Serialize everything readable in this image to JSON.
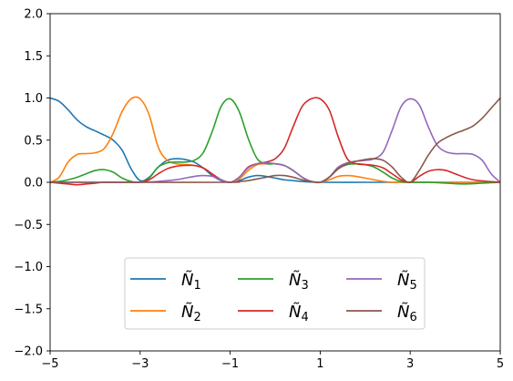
{
  "chart_data": {
    "type": "line",
    "title": "",
    "xlabel": "",
    "ylabel": "",
    "xlim": [
      -5,
      5
    ],
    "ylim": [
      -2.0,
      2.0
    ],
    "xticks": [
      -5,
      -3,
      -1,
      1,
      3,
      5
    ],
    "xtick_labels": [
      "−5",
      "−3",
      "−1",
      "1",
      "3",
      "5"
    ],
    "yticks": [
      -2.0,
      -1.5,
      -1.0,
      -0.5,
      0.0,
      0.5,
      1.0,
      1.5,
      2.0
    ],
    "ytick_labels": [
      "−2.0",
      "−1.5",
      "−1.0",
      "−0.5",
      "0.0",
      "0.5",
      "1.0",
      "1.5",
      "2.0"
    ],
    "grid": false,
    "legend": {
      "placement": "lower center",
      "columns": 3
    },
    "series": [
      {
        "name": "N1",
        "legend_base": "Ñ",
        "legend_sub": "1",
        "color": "#1f77b4",
        "x": [
          -5,
          -4.8,
          -4.6,
          -4.4,
          -4.2,
          -4.0,
          -3.8,
          -3.6,
          -3.4,
          -3.2,
          -3.0,
          -2.8,
          -2.6,
          -2.4,
          -2.2,
          -2.0,
          -1.8,
          -1.6,
          -1.4,
          -1.2,
          -1.0,
          -0.8,
          -0.6,
          -0.4,
          -0.2,
          0.0,
          0.2,
          0.4,
          0.6,
          1.0,
          2.0,
          3.0,
          4.0,
          5.0
        ],
        "y": [
          1.0,
          0.96,
          0.86,
          0.74,
          0.66,
          0.61,
          0.56,
          0.5,
          0.38,
          0.16,
          0.02,
          0.06,
          0.18,
          0.26,
          0.28,
          0.27,
          0.24,
          0.17,
          0.08,
          0.02,
          0.0,
          0.02,
          0.06,
          0.08,
          0.07,
          0.05,
          0.03,
          0.02,
          0.01,
          0.0,
          0.0,
          0.0,
          0.0,
          0.0
        ]
      },
      {
        "name": "N2",
        "legend_base": "Ñ",
        "legend_sub": "2",
        "color": "#ff7f0e",
        "x": [
          -5,
          -4.8,
          -4.6,
          -4.4,
          -4.2,
          -4.0,
          -3.8,
          -3.6,
          -3.4,
          -3.2,
          -3.0,
          -2.8,
          -2.6,
          -2.4,
          -2.2,
          -2.0,
          -1.8,
          -1.6,
          -1.4,
          -1.2,
          -1.0,
          -0.8,
          -0.6,
          -0.4,
          -0.2,
          0.0,
          0.2,
          0.4,
          0.6,
          0.8,
          1.0,
          1.2,
          1.4,
          1.6,
          1.8,
          2.0,
          2.2,
          2.4,
          2.6,
          2.8,
          3.0,
          4.0,
          5.0
        ],
        "y": [
          0.0,
          0.06,
          0.24,
          0.33,
          0.34,
          0.35,
          0.4,
          0.58,
          0.84,
          0.99,
          0.99,
          0.8,
          0.42,
          0.26,
          0.22,
          0.21,
          0.2,
          0.17,
          0.1,
          0.03,
          0.0,
          0.04,
          0.14,
          0.21,
          0.22,
          0.22,
          0.2,
          0.14,
          0.06,
          0.01,
          0.0,
          0.03,
          0.07,
          0.08,
          0.07,
          0.05,
          0.03,
          0.01,
          0.0,
          0.0,
          0.0,
          0.0,
          0.0
        ]
      },
      {
        "name": "N3",
        "legend_base": "Ñ",
        "legend_sub": "3",
        "color": "#2ca02c",
        "x": [
          -5,
          -4.8,
          -4.6,
          -4.4,
          -4.2,
          -4.0,
          -3.8,
          -3.6,
          -3.4,
          -3.2,
          -3.0,
          -2.8,
          -2.6,
          -2.4,
          -2.2,
          -2.0,
          -1.8,
          -1.6,
          -1.4,
          -1.2,
          -1.0,
          -0.8,
          -0.6,
          -0.4,
          -0.2,
          0.0,
          0.2,
          0.4,
          0.6,
          0.8,
          1.0,
          1.2,
          1.4,
          1.6,
          1.8,
          2.0,
          2.2,
          2.4,
          2.6,
          2.8,
          3.0,
          3.4,
          3.8,
          4.2,
          4.6,
          5.0
        ],
        "y": [
          0.0,
          0.01,
          0.03,
          0.06,
          0.1,
          0.14,
          0.15,
          0.12,
          0.05,
          0.01,
          0.0,
          0.05,
          0.18,
          0.23,
          0.24,
          0.24,
          0.26,
          0.35,
          0.6,
          0.9,
          0.99,
          0.84,
          0.52,
          0.28,
          0.22,
          0.22,
          0.2,
          0.14,
          0.06,
          0.01,
          0.0,
          0.06,
          0.16,
          0.21,
          0.22,
          0.21,
          0.18,
          0.12,
          0.05,
          0.01,
          0.0,
          0.0,
          -0.01,
          -0.02,
          -0.01,
          0.0
        ]
      },
      {
        "name": "N4",
        "legend_base": "Ñ",
        "legend_sub": "4",
        "color": "#d62728",
        "x": [
          -5,
          -4.8,
          -4.6,
          -4.4,
          -4.2,
          -4.0,
          -3.8,
          -3.6,
          -3.4,
          -3.2,
          -3.0,
          -2.8,
          -2.6,
          -2.4,
          -2.2,
          -2.0,
          -1.8,
          -1.6,
          -1.4,
          -1.2,
          -1.0,
          -0.8,
          -0.6,
          -0.4,
          -0.2,
          0.0,
          0.2,
          0.4,
          0.6,
          0.8,
          1.0,
          1.2,
          1.4,
          1.6,
          1.8,
          2.0,
          2.2,
          2.4,
          2.6,
          2.8,
          3.0,
          3.2,
          3.4,
          3.6,
          3.8,
          4.0,
          4.4,
          5.0
        ],
        "y": [
          0.0,
          -0.01,
          -0.02,
          -0.03,
          -0.02,
          -0.01,
          0.0,
          0.0,
          0.0,
          0.0,
          0.0,
          0.03,
          0.1,
          0.16,
          0.19,
          0.2,
          0.2,
          0.17,
          0.1,
          0.03,
          0.0,
          0.06,
          0.18,
          0.22,
          0.24,
          0.28,
          0.4,
          0.66,
          0.9,
          0.99,
          0.99,
          0.86,
          0.54,
          0.28,
          0.22,
          0.21,
          0.2,
          0.17,
          0.1,
          0.03,
          0.0,
          0.07,
          0.13,
          0.15,
          0.14,
          0.1,
          0.03,
          0.0
        ]
      },
      {
        "name": "N5",
        "legend_base": "Ñ",
        "legend_sub": "5",
        "color": "#9467bd",
        "x": [
          -5,
          -4.0,
          -3.0,
          -2.6,
          -2.2,
          -2.0,
          -1.8,
          -1.6,
          -1.4,
          -1.2,
          -1.0,
          -0.8,
          -0.6,
          -0.4,
          -0.2,
          0.0,
          0.2,
          0.4,
          0.6,
          0.8,
          1.0,
          1.2,
          1.4,
          1.6,
          1.8,
          2.0,
          2.2,
          2.4,
          2.6,
          2.8,
          3.0,
          3.2,
          3.4,
          3.6,
          3.8,
          4.0,
          4.2,
          4.4,
          4.6,
          4.8,
          5.0
        ],
        "y": [
          0.0,
          0.0,
          0.0,
          0.01,
          0.03,
          0.05,
          0.07,
          0.08,
          0.07,
          0.03,
          0.0,
          0.06,
          0.17,
          0.22,
          0.23,
          0.22,
          0.2,
          0.14,
          0.06,
          0.01,
          0.0,
          0.06,
          0.18,
          0.23,
          0.25,
          0.26,
          0.28,
          0.36,
          0.62,
          0.9,
          0.99,
          0.92,
          0.66,
          0.44,
          0.36,
          0.34,
          0.34,
          0.33,
          0.26,
          0.1,
          0.0
        ]
      },
      {
        "name": "N6",
        "legend_base": "Ñ",
        "legend_sub": "6",
        "color": "#8c564b",
        "x": [
          -5,
          -3.0,
          -1.0,
          -0.8,
          -0.6,
          -0.4,
          -0.2,
          0.0,
          0.2,
          0.4,
          0.6,
          0.8,
          1.0,
          1.2,
          1.4,
          1.6,
          1.8,
          2.0,
          2.2,
          2.4,
          2.6,
          2.8,
          3.0,
          3.2,
          3.4,
          3.6,
          3.8,
          4.0,
          4.2,
          4.4,
          4.6,
          4.8,
          5.0
        ],
        "y": [
          0.0,
          0.0,
          0.0,
          0.01,
          0.02,
          0.04,
          0.06,
          0.08,
          0.08,
          0.06,
          0.03,
          0.01,
          0.0,
          0.06,
          0.16,
          0.22,
          0.25,
          0.27,
          0.28,
          0.26,
          0.18,
          0.06,
          0.0,
          0.14,
          0.32,
          0.46,
          0.53,
          0.58,
          0.62,
          0.67,
          0.76,
          0.88,
          1.0
        ]
      }
    ]
  }
}
